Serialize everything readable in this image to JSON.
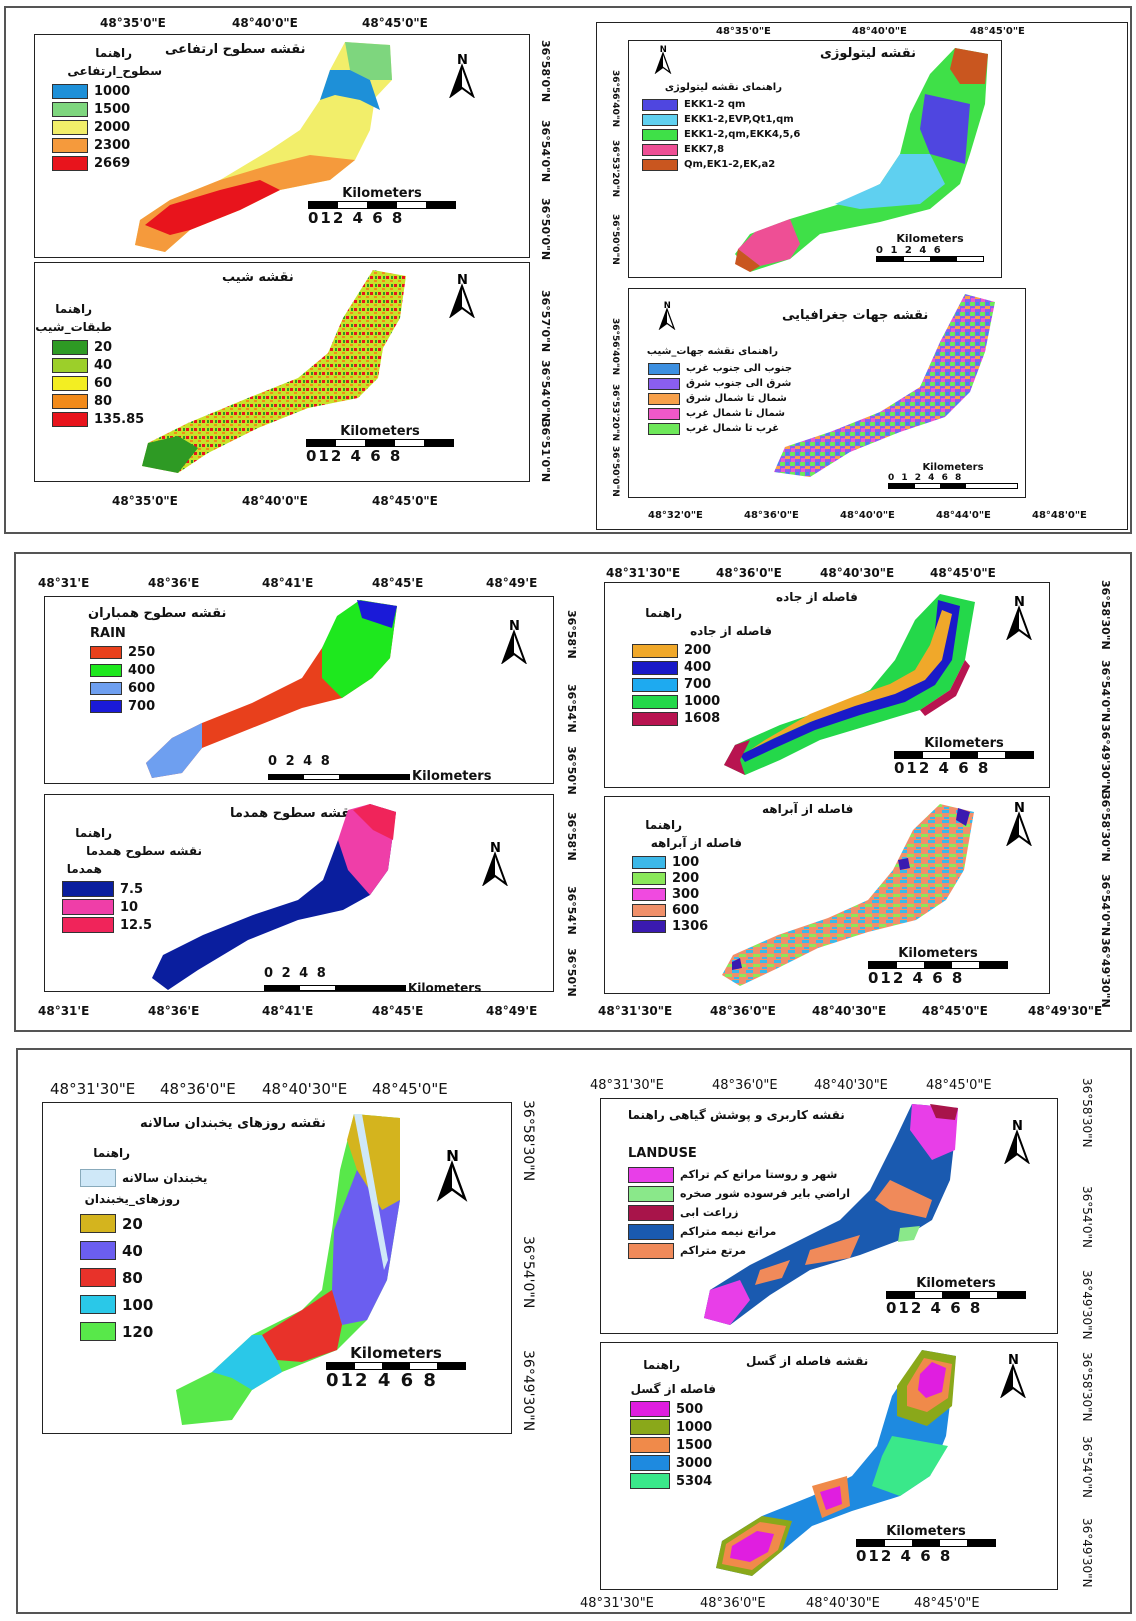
{
  "panel1": {
    "axis_top": [
      "48°35'0\"E",
      "48°40'0\"E",
      "48°45'0\"E"
    ],
    "axis_bottom": [
      "48°35'0\"E",
      "48°40'0\"E",
      "48°45'0\"E"
    ],
    "axis_right": [
      "36°58'0\"N",
      "36°54'0\"N",
      "36°50'0\"N",
      "36°57'0\"N",
      "36°54'0\"N",
      "36°51'0\"N"
    ],
    "elevation": {
      "title": "نقشه سطوح ارتفاعی",
      "guide": "راهنما",
      "field": "سطوح_ارتفاعی",
      "classes": [
        {
          "label": "1000",
          "color": "#1e90d8"
        },
        {
          "label": "1500",
          "color": "#7ed67e"
        },
        {
          "label": "2000",
          "color": "#f2ee6a"
        },
        {
          "label": "2300",
          "color": "#f59a3c"
        },
        {
          "label": "2669",
          "color": "#e8141c"
        }
      ],
      "scale_unit": "Kilometers",
      "scale_nums": "012  4  6  8"
    },
    "slope": {
      "title": "نقشه شیب",
      "guide": "راهنما",
      "field": "طبقات_شیب",
      "classes": [
        {
          "label": "20",
          "color": "#2e9a24"
        },
        {
          "label": "40",
          "color": "#9ccf2a"
        },
        {
          "label": "60",
          "color": "#f3ee22"
        },
        {
          "label": "80",
          "color": "#f28a1a"
        },
        {
          "label": "135.85",
          "color": "#e8141c"
        }
      ],
      "scale_unit": "Kilometers",
      "scale_nums": "012  4  6  8"
    }
  },
  "panel1r": {
    "axis_top": [
      "48°35'0\"E",
      "48°40'0\"E",
      "48°45'0\"E"
    ],
    "axis_bottom": [
      "48°32'0\"E",
      "48°36'0\"E",
      "48°40'0\"E",
      "48°44'0\"E",
      "48°48'0\"E"
    ],
    "axis_left": [
      "36°56'40\"N",
      "36°53'20\"N",
      "36°50'0\"N",
      "36°56'40\"N",
      "36°53'20\"N",
      "36°50'0\"N"
    ],
    "lithology": {
      "title": "نقشه لیتولوژی",
      "guide": "راهنمای نقشه لیتولوژی",
      "classes": [
        {
          "label": "EKK1-2 qm",
          "color": "#4f46e0"
        },
        {
          "label": "EKK1-2,EVP,Qt1,qm",
          "color": "#5fd0f0"
        },
        {
          "label": "EKK1-2,qm,EKK4,5,6",
          "color": "#3fe048"
        },
        {
          "label": "EKK7,8",
          "color": "#ee4f95"
        },
        {
          "label": "Qm,EK1-2,EK,a2",
          "color": "#c9561f"
        }
      ],
      "scale_unit": "Kilometers",
      "scale_nums": "0 1 2    4    6"
    },
    "aspect": {
      "title": "نقشه جهات جغرافیایی",
      "guide": "راهنمای نقشه جهات_شیب",
      "classes": [
        {
          "label": "جنوب الی جنوب غرب",
          "color": "#3c8fe0"
        },
        {
          "label": "شرق الی جنوب شرق",
          "color": "#8a5ef0"
        },
        {
          "label": "شمال تا شمال شرق",
          "color": "#f7a04a"
        },
        {
          "label": "شمال تا شمال غرب",
          "color": "#f058c8"
        },
        {
          "label": "غرب تا شمال غرب",
          "color": "#6ee85a"
        }
      ],
      "scale_unit": "Kilometers",
      "scale_nums": "0 1 2    4    6    8"
    }
  },
  "panel2": {
    "axis_top": [
      "48°31'E",
      "48°36'E",
      "48°41'E",
      "48°45'E",
      "48°49'E"
    ],
    "axis_bottom": [
      "48°31'E",
      "48°36'E",
      "48°41'E",
      "48°45'E",
      "48°49'E"
    ],
    "axis_right": [
      "36°58'N",
      "36°54'N",
      "36°50'N",
      "36°58'N",
      "36°54'N",
      "36°50'N"
    ],
    "rain": {
      "title": "نقشه سطوح همباران",
      "field": "RAIN",
      "classes": [
        {
          "label": "250",
          "color": "#e8401c"
        },
        {
          "label": "400",
          "color": "#1ee81e"
        },
        {
          "label": "600",
          "color": "#6e9ff0"
        },
        {
          "label": "700",
          "color": "#1a1ad8"
        }
      ],
      "scale_nums": "0   2   4          8",
      "scale_unit": "Kilometers"
    },
    "temp": {
      "title": "نقشه سطوح همدما",
      "guide": "راهنما",
      "field": "نقشه سطوح همدما",
      "field2": "همدما",
      "classes": [
        {
          "label": "7.5",
          "color": "#0a1e9e"
        },
        {
          "label": "10",
          "color": "#ef3ea8"
        },
        {
          "label": "12.5",
          "color": "#f0245a"
        }
      ],
      "scale_nums": "0   2   4          8",
      "scale_unit": "Kilometers"
    }
  },
  "panel2r": {
    "axis_top": [
      "48°31'30\"E",
      "48°36'0\"E",
      "48°40'30\"E",
      "48°45'0\"E"
    ],
    "axis_bottom": [
      "48°31'30\"E",
      "48°36'0\"E",
      "48°40'30\"E",
      "48°45'0\"E",
      "48°49'30\"E"
    ],
    "axis_right": [
      "36°58'30\"N",
      "36°54'0\"N",
      "36°49'30\"N",
      "36°58'30\"N",
      "36°54'0\"N",
      "36°49'30\"N"
    ],
    "road": {
      "title": "فاصله از جاده",
      "guide": "راهنما",
      "field": "فاصله از جاده",
      "classes": [
        {
          "label": "200",
          "color": "#f0a82a"
        },
        {
          "label": "400",
          "color": "#1a1ac8"
        },
        {
          "label": "700",
          "color": "#1eaaf0"
        },
        {
          "label": "1000",
          "color": "#24d84a"
        },
        {
          "label": "1608",
          "color": "#b81450"
        }
      ],
      "scale_unit": "Kilometers",
      "scale_nums": "012  4  6  8"
    },
    "stream": {
      "title": "فاصله از آبراهه",
      "guide": "راهنما",
      "field": "فاصله از آبراهه",
      "classes": [
        {
          "label": "100",
          "color": "#3cb8e8"
        },
        {
          "label": "200",
          "color": "#8ae85a"
        },
        {
          "label": "300",
          "color": "#f04ae0"
        },
        {
          "label": "600",
          "color": "#f0906a"
        },
        {
          "label": "1306",
          "color": "#3a1ab0"
        }
      ],
      "scale_unit": "Kilometers",
      "scale_nums": "012  4  6  8"
    }
  },
  "panel3": {
    "axis_top": [
      "48°31'30\"E",
      "48°36'0\"E",
      "48°40'30\"E",
      "48°45'0\"E"
    ],
    "axis_right": [
      "36°58'30\"N",
      "36°54'0\"N",
      "36°49'30\"N"
    ],
    "frost": {
      "title": "نقشه روزهای یخبندان سالانه",
      "guide": "راهنما",
      "field_a": "یخبندان سالانه",
      "field_b": "روزهای_یخبندان",
      "frost_color": "#cfe8f8",
      "classes": [
        {
          "label": "20",
          "color": "#d4b41e"
        },
        {
          "label": "40",
          "color": "#6b5ef0"
        },
        {
          "label": "80",
          "color": "#e8322a"
        },
        {
          "label": "100",
          "color": "#2ac8e8"
        },
        {
          "label": "120",
          "color": "#58e84a"
        }
      ],
      "scale_unit": "Kilometers",
      "scale_nums": "012  4  6  8"
    }
  },
  "panel3r": {
    "axis_top": [
      "48°31'30\"E",
      "48°36'0\"E",
      "48°40'30\"E",
      "48°45'0\"E"
    ],
    "axis_bottom": [
      "48°31'30\"E",
      "48°36'0\"E",
      "48°40'30\"E",
      "48°45'0\"E"
    ],
    "axis_right": [
      "36°58'30\"N",
      "36°54'0\"N",
      "36°49'30\"N",
      "36°58'30\"N",
      "36°54'0\"N",
      "36°49'30\"N"
    ],
    "landuse": {
      "title": "نقشه کاربری و پوشش گیاهی راهنما",
      "field": "LANDUSE",
      "classes": [
        {
          "label": "شهر و روستا مراتع کم تراکم",
          "color": "#e83ee8"
        },
        {
          "label": "اراضي باير فرسوده شور صخره",
          "color": "#8ae88a"
        },
        {
          "label": "زراعت ابی",
          "color": "#a8144a"
        },
        {
          "label": "مراتع نیمه متراکم",
          "color": "#1a5ab0"
        },
        {
          "label": "مرتع متراکم",
          "color": "#f08a5a"
        }
      ],
      "scale_unit": "Kilometers",
      "scale_nums": "012  4  6  8"
    },
    "fault": {
      "title": "نقشه فاصله از گسل",
      "guide": "راهنما",
      "field": "فاصله از گسل",
      "classes": [
        {
          "label": "500",
          "color": "#e01ee0"
        },
        {
          "label": "1000",
          "color": "#8aa81a"
        },
        {
          "label": "1500",
          "color": "#f08a4a"
        },
        {
          "label": "3000",
          "color": "#1e8ae0"
        },
        {
          "label": "5304",
          "color": "#3ae88a"
        }
      ],
      "scale_unit": "Kilometers",
      "scale_nums": "012  4  6  8"
    }
  },
  "north_label": "N"
}
